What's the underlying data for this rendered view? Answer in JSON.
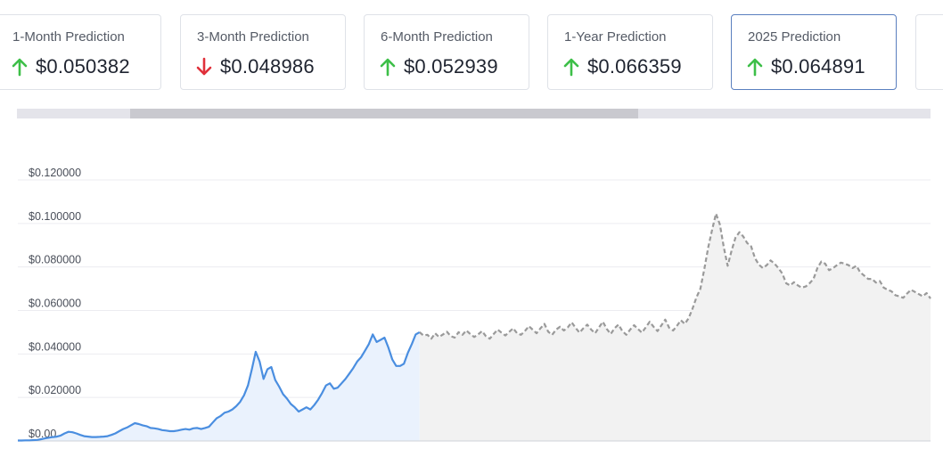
{
  "cards": [
    {
      "title": "1-Month Prediction",
      "value": "$0.050382",
      "direction": "up",
      "active": false
    },
    {
      "title": "3-Month Prediction",
      "value": "$0.048986",
      "direction": "down",
      "active": false
    },
    {
      "title": "6-Month Prediction",
      "value": "$0.052939",
      "direction": "up",
      "active": false
    },
    {
      "title": "1-Year Prediction",
      "value": "$0.066359",
      "direction": "up",
      "active": false
    },
    {
      "title": "2025 Prediction",
      "value": "$0.064891",
      "direction": "up",
      "active": true
    }
  ],
  "colors": {
    "up": "#3dbf48",
    "down": "#e0303a",
    "history": "#4a8ee0",
    "forecast": "#9a9a9a",
    "history_fill": "#eaf2fd",
    "forecast_fill": "#f2f2f2"
  },
  "chart_data": {
    "type": "area",
    "title": "",
    "xlabel": "",
    "ylabel": "",
    "ylim": [
      0,
      0.12
    ],
    "yticks": [
      "$0.00",
      "$0.020000",
      "$0.040000",
      "$0.060000",
      "$0.080000",
      "$0.100000",
      "$0.120000"
    ],
    "ytick_values": [
      0,
      0.02,
      0.04,
      0.06,
      0.08,
      0.1,
      0.12
    ],
    "grid": true,
    "series": [
      {
        "style": "solid",
        "values": [
          0.0002,
          0.0002,
          0.0003,
          0.0003,
          0.0004,
          0.0005,
          0.0008,
          0.0012,
          0.0015,
          0.0018,
          0.002,
          0.0025,
          0.0035,
          0.0042,
          0.004,
          0.0035,
          0.0028,
          0.0022,
          0.002,
          0.0018,
          0.0018,
          0.0019,
          0.002,
          0.0022,
          0.0028,
          0.0035,
          0.0045,
          0.0055,
          0.0062,
          0.0072,
          0.0082,
          0.0078,
          0.0072,
          0.0068,
          0.006,
          0.0058,
          0.0055,
          0.005,
          0.0048,
          0.0045,
          0.0045,
          0.0048,
          0.0052,
          0.0055,
          0.0052,
          0.0058,
          0.006,
          0.0055,
          0.006,
          0.0065,
          0.0085,
          0.0105,
          0.0115,
          0.013,
          0.0135,
          0.0145,
          0.016,
          0.018,
          0.021,
          0.0255,
          0.033,
          0.041,
          0.0365,
          0.0285,
          0.033,
          0.034,
          0.028,
          0.025,
          0.0215,
          0.0195,
          0.017,
          0.0155,
          0.0135,
          0.0145,
          0.0155,
          0.0145,
          0.0165,
          0.019,
          0.022,
          0.0255,
          0.0265,
          0.024,
          0.0245,
          0.0265,
          0.0285,
          0.031,
          0.0335,
          0.0365,
          0.0385,
          0.0415,
          0.0445,
          0.049,
          0.0455,
          0.0465,
          0.0475,
          0.043,
          0.0375,
          0.0345,
          0.0345,
          0.0355,
          0.0405,
          0.0445,
          0.049,
          0.05
        ]
      },
      {
        "style": "dashed",
        "values": [
          0.05,
          0.0485,
          0.0488,
          0.047,
          0.0495,
          0.0478,
          0.049,
          0.0502,
          0.0482,
          0.0475,
          0.05,
          0.0488,
          0.0508,
          0.0492,
          0.0478,
          0.049,
          0.0505,
          0.0482,
          0.047,
          0.0492,
          0.0512,
          0.0498,
          0.0485,
          0.0502,
          0.0518,
          0.0495,
          0.0488,
          0.0505,
          0.0528,
          0.0512,
          0.0495,
          0.0518,
          0.0538,
          0.0502,
          0.0488,
          0.0512,
          0.0525,
          0.0508,
          0.0522,
          0.0545,
          0.052,
          0.0498,
          0.0518,
          0.0535,
          0.0512,
          0.0495,
          0.0522,
          0.0548,
          0.0515,
          0.0492,
          0.0518,
          0.0535,
          0.0505,
          0.0488,
          0.0512,
          0.0532,
          0.0515,
          0.0498,
          0.0522,
          0.0548,
          0.0525,
          0.0505,
          0.0532,
          0.0558,
          0.052,
          0.0508,
          0.053,
          0.0555,
          0.0538,
          0.0565,
          0.061,
          0.066,
          0.07,
          0.079,
          0.089,
          0.097,
          0.1045,
          0.0995,
          0.089,
          0.0805,
          0.0875,
          0.0935,
          0.096,
          0.094,
          0.091,
          0.0895,
          0.084,
          0.081,
          0.0795,
          0.0808,
          0.083,
          0.0815,
          0.0795,
          0.077,
          0.0725,
          0.0715,
          0.073,
          0.0715,
          0.0705,
          0.071,
          0.0725,
          0.0745,
          0.0795,
          0.0825,
          0.0815,
          0.0785,
          0.0795,
          0.0808,
          0.082,
          0.0815,
          0.0808,
          0.0795,
          0.0805,
          0.0775,
          0.076,
          0.0745,
          0.0745,
          0.0728,
          0.0735,
          0.0705,
          0.0695,
          0.0688,
          0.067,
          0.0665,
          0.0658,
          0.0678,
          0.0695,
          0.0685,
          0.0675,
          0.0665,
          0.068,
          0.0655
        ]
      }
    ]
  }
}
